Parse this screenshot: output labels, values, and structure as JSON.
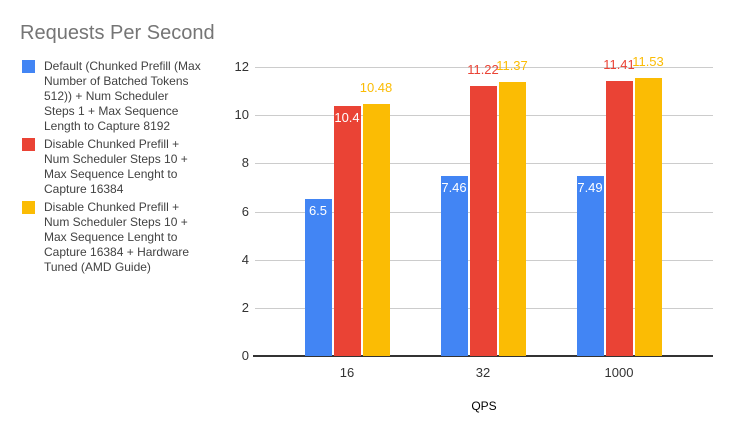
{
  "chart_data": {
    "type": "bar",
    "title": "Requests Per Second",
    "xlabel": "QPS",
    "ylabel": "",
    "ylim": [
      0,
      12
    ],
    "yticks": [
      0,
      2,
      4,
      6,
      8,
      10,
      12
    ],
    "grid": true,
    "legend_position": "left",
    "categories": [
      "16",
      "32",
      "1000"
    ],
    "series": [
      {
        "name": "Default (Chunked Prefill (Max Number of Batched Tokens 512)) + Num Scheduler Steps 1 + Max Sequence Length to Capture 8192",
        "name_lines": [
          "Default (Chunked Prefill (Max",
          "Number of Batched Tokens",
          "512)) + Num Scheduler",
          "Steps 1 + Max Sequence",
          "Length to Capture 8192"
        ],
        "color": "#4285F4",
        "values": [
          6.5,
          7.46,
          7.49
        ],
        "data_labels": [
          "6.5",
          "7.46",
          "7.49"
        ],
        "label_placement": [
          "inside",
          "inside",
          "inside"
        ]
      },
      {
        "name": "Disable Chunked Prefill + Num Scheduler Steps 10 + Max Sequence Lenght to Capture 16384",
        "name_lines": [
          "Disable Chunked Prefill +",
          "Num Scheduler Steps 10 +",
          "Max Sequence Lenght to",
          "Capture 16384"
        ],
        "color": "#EA4335",
        "values": [
          10.4,
          11.22,
          11.41
        ],
        "data_labels": [
          "10.4",
          "11.22",
          "11.41"
        ],
        "label_placement": [
          "inside",
          "outside",
          "outside"
        ]
      },
      {
        "name": "Disable Chunked Prefill + Num Scheduler Steps 10 + Max Sequence Lenght to Capture 16384 + Hardware Tuned (AMD Guide)",
        "name_lines": [
          "Disable Chunked Prefill +",
          "Num Scheduler Steps 10 +",
          "Max Sequence Lenght to",
          "Capture 16384 + Hardware",
          "Tuned (AMD Guide)"
        ],
        "color": "#FBBC04",
        "values": [
          10.48,
          11.37,
          11.53
        ],
        "data_labels": [
          "10.48",
          "11.37",
          "11.53"
        ],
        "label_placement": [
          "outside",
          "outside",
          "outside"
        ]
      }
    ]
  },
  "colors": {
    "title_text": "#757575",
    "legend_text": "#424242",
    "axis_text": "#333333",
    "x_axis_title_text": "#000000",
    "gridline": "#cccccc",
    "baseline": "#333333",
    "background": "#ffffff",
    "inside_label_text": "#ffffff"
  }
}
